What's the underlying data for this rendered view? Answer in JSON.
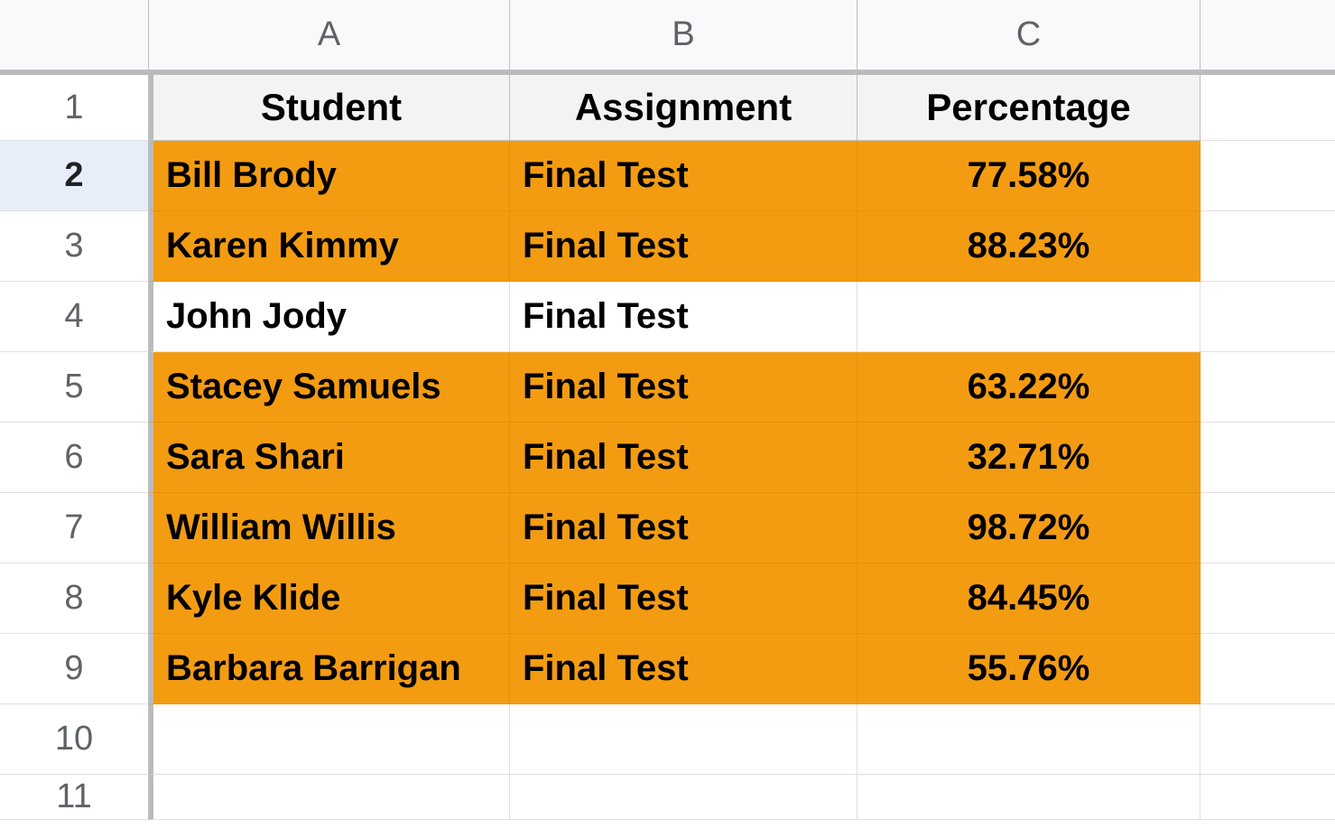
{
  "columns": {
    "A": "A",
    "B": "B",
    "C": "C"
  },
  "rowNumbers": {
    "r1": "1",
    "r2": "2",
    "r3": "3",
    "r4": "4",
    "r5": "5",
    "r6": "6",
    "r7": "7",
    "r8": "8",
    "r9": "9",
    "r10": "10",
    "r11": "11"
  },
  "headers": {
    "student": "Student",
    "assignment": "Assignment",
    "percentage": "Percentage"
  },
  "rows": [
    {
      "student": "Bill Brody",
      "assignment": "Final Test",
      "percentage": "77.58%",
      "highlighted": true
    },
    {
      "student": "Karen Kimmy",
      "assignment": "Final Test",
      "percentage": "88.23%",
      "highlighted": true
    },
    {
      "student": "John Jody",
      "assignment": "Final Test",
      "percentage": "",
      "highlighted": false
    },
    {
      "student": "Stacey Samuels",
      "assignment": "Final Test",
      "percentage": "63.22%",
      "highlighted": true
    },
    {
      "student": "Sara Shari",
      "assignment": "Final Test",
      "percentage": "32.71%",
      "highlighted": true
    },
    {
      "student": "William Willis",
      "assignment": "Final Test",
      "percentage": "98.72%",
      "highlighted": true
    },
    {
      "student": "Kyle Klide",
      "assignment": "Final Test",
      "percentage": "84.45%",
      "highlighted": true
    },
    {
      "student": "Barbara Barrigan",
      "assignment": "Final Test",
      "percentage": "55.76%",
      "highlighted": true
    }
  ],
  "colors": {
    "highlight": "#f39c12",
    "headerBg": "#f3f3f3",
    "colHeaderBg": "#f8f9fa",
    "selectedRowBg": "#e8eef9",
    "border": "#c0c0c0",
    "lightBorder": "#e0e0e0",
    "text": "#000000",
    "headerText": "#5f6368"
  },
  "selectedRow": 2
}
